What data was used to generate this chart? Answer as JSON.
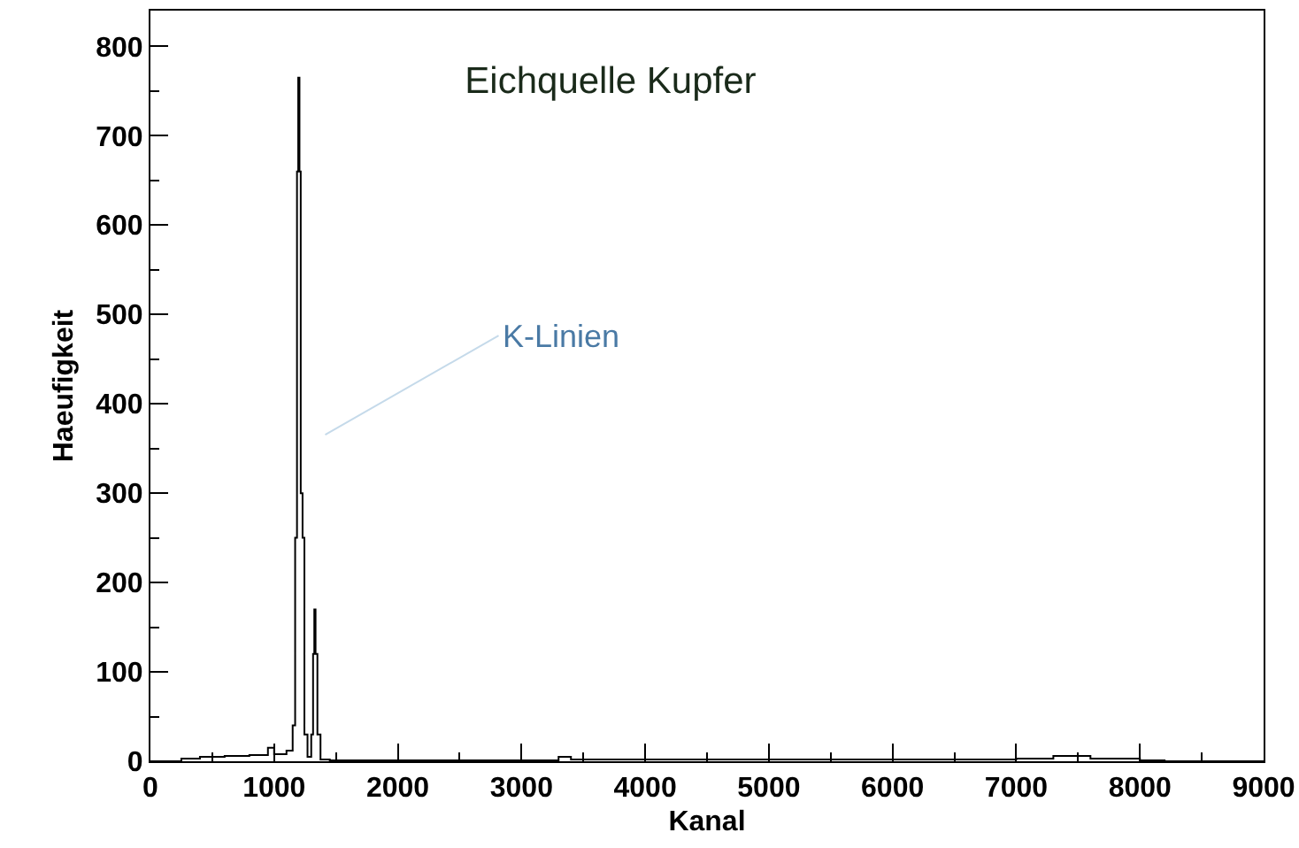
{
  "chart_data": {
    "type": "step",
    "title": "Eichquelle Kupfer",
    "xlabel": "Kanal",
    "ylabel": "Haeufigkeit",
    "x": [
      0,
      250,
      400,
      600,
      800,
      950,
      1000,
      1100,
      1150,
      1170,
      1185,
      1195,
      1205,
      1215,
      1230,
      1245,
      1270,
      1300,
      1315,
      1325,
      1335,
      1350,
      1375,
      1450,
      2000,
      3300,
      3400,
      3800,
      6800,
      7000,
      7300,
      7600,
      8000,
      8200,
      9000
    ],
    "values": [
      0,
      3,
      5,
      6,
      7,
      15,
      8,
      12,
      40,
      250,
      660,
      765,
      660,
      300,
      250,
      30,
      5,
      30,
      120,
      170,
      120,
      30,
      2,
      1,
      1,
      5,
      2,
      2,
      2,
      3,
      6,
      3,
      1,
      0,
      0
    ],
    "color": "#000000",
    "xlim": [
      0,
      9000
    ],
    "xticks": [
      0,
      1000,
      2000,
      3000,
      4000,
      5000,
      6000,
      7000,
      8000,
      9000
    ],
    "ylim": [
      0,
      840
    ],
    "yticks": [
      0,
      100,
      200,
      300,
      400,
      500,
      600,
      700,
      800
    ],
    "annotations": [
      "K-Linien"
    ],
    "line_style": "solid"
  }
}
